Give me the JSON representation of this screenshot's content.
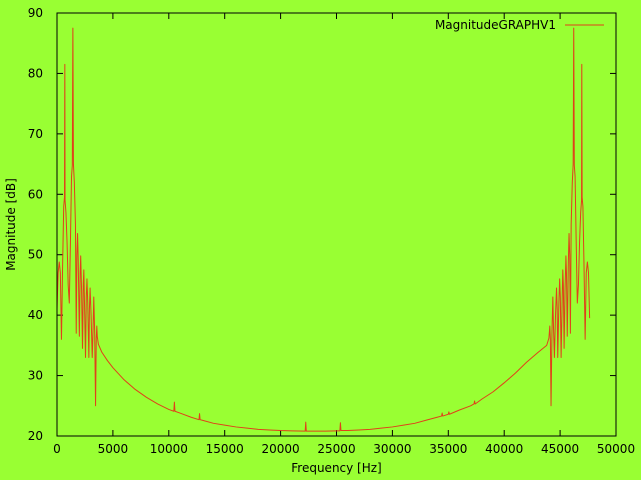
{
  "colors": {
    "background": "#99ff33",
    "series": "#e0401a",
    "frame": "#000000"
  },
  "chart_data": {
    "type": "line",
    "title": "",
    "xlabel": "Frequency [Hz]",
    "ylabel": "Magnitude [dB]",
    "xlim": [
      0,
      50000
    ],
    "ylim": [
      20,
      90
    ],
    "xticks": [
      0,
      5000,
      10000,
      15000,
      20000,
      25000,
      30000,
      35000,
      40000,
      45000,
      50000
    ],
    "yticks": [
      20,
      30,
      40,
      50,
      60,
      70,
      80,
      90
    ],
    "grid": false,
    "legend_position": "top-right",
    "series": [
      {
        "name": "MagnitudeGRAPHV1",
        "points": [
          [
            0,
            41
          ],
          [
            100,
            47
          ],
          [
            200,
            48.8
          ],
          [
            300,
            47
          ],
          [
            400,
            36
          ],
          [
            500,
            48
          ],
          [
            600,
            58
          ],
          [
            670,
            59.5
          ],
          [
            700,
            81.5
          ],
          [
            720,
            59
          ],
          [
            800,
            57
          ],
          [
            900,
            52
          ],
          [
            1000,
            45
          ],
          [
            1100,
            42
          ],
          [
            1200,
            52
          ],
          [
            1300,
            63
          ],
          [
            1370,
            64.8
          ],
          [
            1420,
            87.5
          ],
          [
            1470,
            65
          ],
          [
            1550,
            62
          ],
          [
            1650,
            55
          ],
          [
            1720,
            37
          ],
          [
            1780,
            50
          ],
          [
            1840,
            53.5
          ],
          [
            1900,
            49
          ],
          [
            2000,
            36.5
          ],
          [
            2070,
            47
          ],
          [
            2120,
            49.8
          ],
          [
            2200,
            44
          ],
          [
            2280,
            34.5
          ],
          [
            2350,
            45
          ],
          [
            2400,
            47.5
          ],
          [
            2450,
            43
          ],
          [
            2550,
            33
          ],
          [
            2620,
            43
          ],
          [
            2680,
            46
          ],
          [
            2750,
            42
          ],
          [
            2850,
            33
          ],
          [
            2900,
            41
          ],
          [
            2960,
            44.5
          ],
          [
            3050,
            40
          ],
          [
            3150,
            33
          ],
          [
            3230,
            38
          ],
          [
            3290,
            43
          ],
          [
            3370,
            37
          ],
          [
            3450,
            25
          ],
          [
            3510,
            36
          ],
          [
            3560,
            38.2
          ],
          [
            3600,
            36.5
          ],
          [
            3700,
            35.2
          ],
          [
            4000,
            33.9
          ],
          [
            4500,
            32.5
          ],
          [
            5000,
            31.3
          ],
          [
            6000,
            29.3
          ],
          [
            7000,
            27.7
          ],
          [
            8000,
            26.4
          ],
          [
            9000,
            25.3
          ],
          [
            10000,
            24.4
          ],
          [
            10450,
            24.1
          ],
          [
            10500,
            25.6
          ],
          [
            10550,
            24.1
          ],
          [
            11000,
            23.8
          ],
          [
            12000,
            23.1
          ],
          [
            12700,
            22.7
          ],
          [
            12750,
            23.7
          ],
          [
            12800,
            22.7
          ],
          [
            13000,
            22.6
          ],
          [
            14000,
            22.1
          ],
          [
            15000,
            21.8
          ],
          [
            16000,
            21.5
          ],
          [
            17000,
            21.3
          ],
          [
            18000,
            21.1
          ],
          [
            19000,
            21.0
          ],
          [
            20000,
            20.9
          ],
          [
            21000,
            20.85
          ],
          [
            22200,
            20.8
          ],
          [
            22250,
            22.3
          ],
          [
            22300,
            20.8
          ],
          [
            23000,
            20.8
          ],
          [
            24000,
            20.8
          ],
          [
            25000,
            20.85
          ],
          [
            25300,
            20.85
          ],
          [
            25350,
            22.2
          ],
          [
            25400,
            20.9
          ],
          [
            26000,
            20.9
          ],
          [
            27000,
            21.0
          ],
          [
            28000,
            21.1
          ],
          [
            29000,
            21.3
          ],
          [
            30000,
            21.5
          ],
          [
            31000,
            21.8
          ],
          [
            32000,
            22.1
          ],
          [
            33000,
            22.6
          ],
          [
            34000,
            23.1
          ],
          [
            34400,
            23.3
          ],
          [
            34450,
            23.8
          ],
          [
            34500,
            23.3
          ],
          [
            35000,
            23.6
          ],
          [
            35050,
            24.0
          ],
          [
            35100,
            23.6
          ],
          [
            36000,
            24.3
          ],
          [
            37000,
            25.0
          ],
          [
            37300,
            25.3
          ],
          [
            37350,
            25.8
          ],
          [
            37400,
            25.3
          ],
          [
            38000,
            26.1
          ],
          [
            39000,
            27.3
          ],
          [
            40000,
            28.8
          ],
          [
            41000,
            30.4
          ],
          [
            42000,
            32.2
          ],
          [
            43000,
            33.8
          ],
          [
            43800,
            35.0
          ],
          [
            44000,
            36.2
          ],
          [
            44080,
            38.2
          ],
          [
            44130,
            36
          ],
          [
            44190,
            25
          ],
          [
            44270,
            37
          ],
          [
            44350,
            43
          ],
          [
            44410,
            38
          ],
          [
            44490,
            33
          ],
          [
            44590,
            40
          ],
          [
            44680,
            44.5
          ],
          [
            44740,
            41
          ],
          [
            44790,
            33
          ],
          [
            44890,
            42
          ],
          [
            44960,
            46
          ],
          [
            45020,
            43
          ],
          [
            45090,
            33
          ],
          [
            45190,
            43
          ],
          [
            45240,
            47.5
          ],
          [
            45290,
            45
          ],
          [
            45360,
            34.5
          ],
          [
            45440,
            44
          ],
          [
            45520,
            49.8
          ],
          [
            45570,
            47
          ],
          [
            45640,
            36.5
          ],
          [
            45740,
            49
          ],
          [
            45800,
            53.5
          ],
          [
            45860,
            50
          ],
          [
            45920,
            37
          ],
          [
            45990,
            55
          ],
          [
            46090,
            62
          ],
          [
            46170,
            65
          ],
          [
            46220,
            87.5
          ],
          [
            46270,
            64.8
          ],
          [
            46340,
            63
          ],
          [
            46440,
            52
          ],
          [
            46540,
            42
          ],
          [
            46640,
            45
          ],
          [
            46740,
            52
          ],
          [
            46840,
            57
          ],
          [
            46920,
            59
          ],
          [
            46940,
            81.5
          ],
          [
            46970,
            59.5
          ],
          [
            47040,
            58
          ],
          [
            47140,
            48
          ],
          [
            47240,
            36
          ],
          [
            47340,
            47
          ],
          [
            47440,
            48.8
          ],
          [
            47540,
            47
          ],
          [
            47640,
            39.5
          ]
        ]
      }
    ]
  }
}
